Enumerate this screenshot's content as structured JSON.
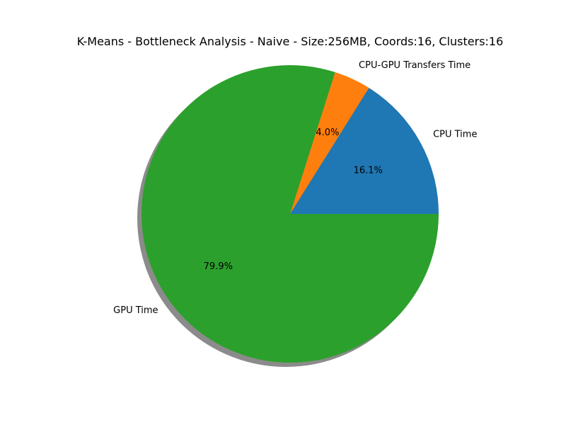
{
  "chart_data": {
    "type": "pie",
    "title": "K-Means - Bottleneck Analysis - Naive - Size:256MB, Coords:16, Clusters:16",
    "slices": [
      {
        "label": "CPU Time",
        "value": 16.1,
        "pct_label": "16.1%",
        "color": "#1f77b4"
      },
      {
        "label": "CPU-GPU Transfers Time",
        "value": 4.0,
        "pct_label": "4.0%",
        "color": "#ff7f0e"
      },
      {
        "label": "GPU Time",
        "value": 79.9,
        "pct_label": "79.9%",
        "color": "#2ca02c"
      }
    ],
    "start_angle_deg": 0,
    "direction": "counterclockwise",
    "shadow": true,
    "legend": "none"
  }
}
